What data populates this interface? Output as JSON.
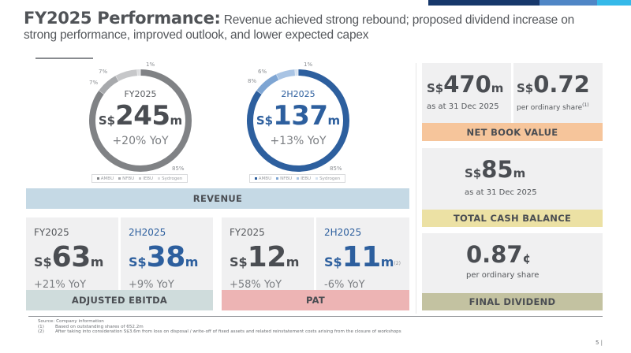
{
  "colors": {
    "topbar": [
      "#17386b",
      "#4f86c6",
      "#35b9e9"
    ],
    "revenue_band": "#c5d9e5",
    "ebitda_band": "#cfdcdc",
    "pat_band": "#edb4b4",
    "nbv_band": "#f6c59b",
    "cash_band": "#ece1a4",
    "dividend_band": "#c3c2a1",
    "fy_donut": [
      "#808285",
      "#a7a9ac",
      "#c6c7c9",
      "#dcdddf"
    ],
    "h2_donut": [
      "#2d5f9e",
      "#7ea5d3",
      "#a9c4e4",
      "#d5e2f1"
    ]
  },
  "header": {
    "title_bold": "FY2025 Performance:",
    "title_rest": " Revenue achieved strong rebound; proposed dividend increase on strong performance, improved outlook, and lower expected capex"
  },
  "chart_data": [
    {
      "type": "pie",
      "title": "FY2025",
      "center_value": "245",
      "center_currency": "S$",
      "center_unit": "m",
      "center_yoy": "+20% YoY",
      "categories": [
        "AMBU",
        "NFBU",
        "IEBU",
        "Sydrogen"
      ],
      "values": [
        85,
        7,
        7,
        1
      ],
      "labels": [
        "85%",
        "7%",
        "7%",
        "1%"
      ],
      "legend_placement": "bottom"
    },
    {
      "type": "pie",
      "title": "2H2025",
      "center_value": "137",
      "center_currency": "S$",
      "center_unit": "m",
      "center_yoy": "+13% YoY",
      "categories": [
        "AMBU",
        "NFBU",
        "IEBU",
        "Sydrogen"
      ],
      "values": [
        85,
        8,
        6,
        1
      ],
      "labels": [
        "85%",
        "8%",
        "6%",
        "1%"
      ],
      "legend_placement": "bottom"
    }
  ],
  "revenue": {
    "label": "REVENUE"
  },
  "ebitda": {
    "label": "ADJUSTED EBITDA",
    "fy": {
      "period": "FY2025",
      "currency": "S$",
      "value": "63",
      "unit": "m",
      "yoy": "+21% YoY"
    },
    "h2": {
      "period": "2H2025",
      "currency": "S$",
      "value": "38",
      "unit": "m",
      "yoy": "+9% YoY"
    }
  },
  "pat": {
    "label": "PAT",
    "fy": {
      "period": "FY2025",
      "currency": "S$",
      "value": "12",
      "unit": "m",
      "yoy": "+58% YoY"
    },
    "h2": {
      "period": "2H2025",
      "currency": "S$",
      "value": "11",
      "unit": "m",
      "note": "(2)",
      "yoy": "-6% YoY"
    }
  },
  "nbv": {
    "label": "NET BOOK VALUE",
    "total": {
      "currency": "S$",
      "value": "470",
      "unit": "m",
      "sub": "as at 31 Dec 2025"
    },
    "per_share": {
      "currency": "S$",
      "value": "0.72",
      "sub": "per ordinary share",
      "note": "(1)"
    }
  },
  "cash": {
    "label": "TOTAL CASH BALANCE",
    "currency": "S$",
    "value": "85",
    "unit": "m",
    "sub": "as at 31 Dec 2025"
  },
  "dividend": {
    "label": "FINAL DIVIDEND",
    "value": "0.87",
    "unit": "¢",
    "sub": "per ordinary share"
  },
  "footnotes": {
    "source_marker": "Source:",
    "source": "Company information",
    "notes": [
      {
        "marker": "(1)",
        "text": "Based on outstanding shares of 652.2m"
      },
      {
        "marker": "(2)",
        "text": "After taking into consideration S$3.6m from loss on disposal / write-off of fixed assets and related reinstatement costs arising from the closure of workshops"
      }
    ]
  },
  "page_number": "5 |"
}
